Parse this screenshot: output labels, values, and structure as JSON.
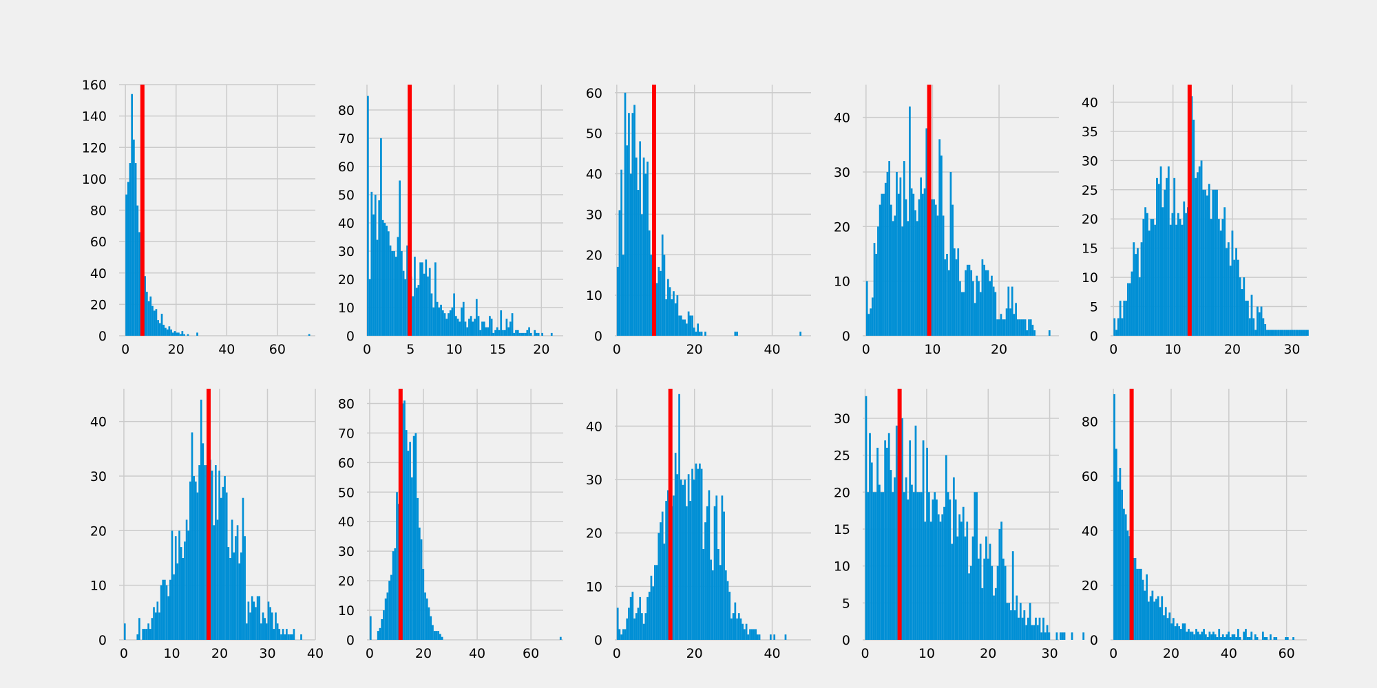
{
  "colors": {
    "figure_bg": "#f0f0f0",
    "axes_bg": "#f0f0f0",
    "grid": "#cbcbcb",
    "bar": "#008fd5",
    "marker": "#ff0000"
  },
  "chart_data": [
    {
      "type": "histogram",
      "grid": true,
      "xlim": [
        -2.5,
        75
      ],
      "ylim": [
        0,
        160
      ],
      "xticks": [
        0,
        20,
        40,
        60
      ],
      "yticks": [
        0,
        20,
        40,
        60,
        80,
        100,
        120,
        140,
        160
      ],
      "bin_start": 0,
      "bin_width": 0.737,
      "marker": 6.7,
      "counts": [
        90,
        98,
        110,
        154,
        125,
        110,
        83,
        66,
        53,
        45,
        38,
        28,
        22,
        25,
        19,
        16,
        17,
        10,
        8,
        14,
        7,
        5,
        4,
        6,
        4,
        2,
        3,
        2,
        2,
        1,
        3,
        1,
        0,
        1,
        0,
        0,
        0,
        0,
        2,
        0,
        0,
        0,
        0,
        0,
        0,
        0,
        0,
        0,
        0,
        0,
        0,
        0,
        0,
        0,
        0,
        0,
        0,
        0,
        0,
        0,
        0,
        0,
        0,
        0,
        0,
        0,
        0,
        0,
        0,
        0,
        0,
        0,
        0,
        0,
        0,
        0,
        0,
        0,
        0,
        0,
        0,
        0,
        0,
        0,
        0,
        0,
        0,
        0,
        0,
        0,
        0,
        0,
        0,
        0,
        0,
        0,
        0,
        0,
        1
      ]
    },
    {
      "type": "histogram",
      "grid": true,
      "xlim": [
        0,
        22.5
      ],
      "ylim": [
        0,
        89
      ],
      "xticks": [
        0,
        5,
        10,
        15,
        20
      ],
      "yticks": [
        0,
        10,
        20,
        30,
        40,
        50,
        60,
        70,
        80
      ],
      "bin_start": 0,
      "bin_width": 0.215,
      "marker": 4.9,
      "counts": [
        85,
        20,
        51,
        43,
        50,
        34,
        48,
        70,
        41,
        40,
        39,
        37,
        32,
        30,
        30,
        28,
        35,
        55,
        30,
        23,
        20,
        32,
        26,
        21,
        14,
        28,
        17,
        18,
        26,
        26,
        22,
        27,
        21,
        24,
        15,
        10,
        26,
        12,
        10,
        11,
        9,
        8,
        6,
        8,
        9,
        10,
        15,
        7,
        6,
        5,
        10,
        12,
        5,
        3,
        6,
        7,
        5,
        6,
        13,
        7,
        2,
        5,
        5,
        3,
        3,
        7,
        6,
        1,
        2,
        3,
        2,
        9,
        2,
        2,
        6,
        3,
        5,
        8,
        1,
        2,
        2,
        1,
        1,
        1,
        1,
        2,
        3,
        1,
        0,
        2,
        1,
        1,
        0,
        1,
        0,
        0,
        0,
        0,
        1,
        0,
        0,
        0,
        0,
        0,
        0,
        0,
        0,
        0,
        0,
        0,
        0,
        0,
        0,
        0,
        0,
        0,
        0,
        0,
        0,
        0,
        0,
        0,
        0,
        0,
        0,
        0,
        0,
        0,
        0,
        0,
        0,
        0,
        0,
        0,
        0,
        0,
        0,
        0,
        0,
        0,
        0,
        0,
        0,
        0,
        0,
        0,
        0,
        0,
        0,
        0,
        0,
        0,
        0,
        0,
        0,
        0,
        0,
        0,
        0,
        0,
        0,
        0,
        0,
        0,
        0,
        0,
        0,
        0,
        0,
        0,
        0,
        0,
        0,
        1
      ]
    },
    {
      "type": "histogram",
      "grid": true,
      "xlim": [
        -0.5,
        50
      ],
      "ylim": [
        0,
        62
      ],
      "xticks": [
        0,
        20,
        40
      ],
      "yticks": [
        0,
        10,
        20,
        30,
        40,
        50,
        60
      ],
      "bin_start": 0,
      "bin_width": 0.48,
      "marker": 9.6,
      "counts": [
        17,
        31,
        41,
        20,
        60,
        47,
        55,
        40,
        55,
        57,
        44,
        36,
        48,
        30,
        44,
        40,
        43,
        26,
        20,
        21,
        15,
        13,
        17,
        16,
        25,
        20,
        9,
        14,
        12,
        9,
        11,
        8,
        10,
        5,
        5,
        4,
        4,
        3,
        6,
        5,
        5,
        2,
        1,
        3,
        1,
        1,
        0,
        1,
        0,
        0,
        0,
        0,
        0,
        0,
        0,
        0,
        0,
        0,
        0,
        0,
        0,
        0,
        0,
        1,
        1,
        0,
        0,
        0,
        0,
        0,
        0,
        0,
        0,
        0,
        0,
        0,
        0,
        0,
        0,
        0,
        0,
        0,
        0,
        0,
        0,
        0,
        0,
        0,
        0,
        0,
        0,
        0,
        0,
        0,
        0,
        0,
        0,
        0,
        1
      ]
    },
    {
      "type": "histogram",
      "grid": true,
      "xlim": [
        -0.5,
        29
      ],
      "ylim": [
        0,
        46
      ],
      "xticks": [
        0,
        10,
        20
      ],
      "yticks": [
        0,
        10,
        20,
        30,
        40
      ],
      "bin_start": 0,
      "bin_width": 0.28,
      "marker": 9.5,
      "counts": [
        10,
        4,
        5,
        7,
        17,
        15,
        20,
        24,
        26,
        26,
        28,
        30,
        32,
        24,
        21,
        22,
        30,
        26,
        29,
        20,
        32,
        25,
        21,
        42,
        27,
        26,
        23,
        21,
        25,
        29,
        26,
        27,
        38,
        23,
        23,
        25,
        25,
        24,
        22,
        36,
        33,
        22,
        14,
        15,
        12,
        30,
        24,
        16,
        14,
        16,
        10,
        8,
        8,
        12,
        13,
        13,
        12,
        10,
        6,
        11,
        10,
        8,
        14,
        13,
        12,
        12,
        10,
        11,
        9,
        8,
        3,
        3,
        4,
        3,
        3,
        5,
        9,
        5,
        9,
        4,
        6,
        3,
        3,
        3,
        3,
        3,
        1,
        3,
        3,
        2,
        1,
        0,
        0,
        0,
        0,
        0,
        0,
        0,
        1,
        0,
        0,
        0,
        0,
        0,
        0,
        0,
        0,
        0,
        0,
        0,
        0,
        0,
        0,
        0,
        0,
        0,
        0,
        0,
        0,
        0,
        0,
        0,
        0,
        0,
        0,
        0,
        0,
        0,
        0,
        0,
        0,
        0,
        0,
        0,
        0,
        0,
        0,
        0,
        0,
        0,
        0,
        0,
        0,
        0,
        0,
        0,
        0,
        0,
        0,
        0,
        0,
        0,
        0,
        0,
        0,
        0,
        0,
        0,
        1
      ]
    },
    {
      "type": "histogram",
      "grid": true,
      "xlim": [
        -0.5,
        32.5
      ],
      "ylim": [
        0,
        43
      ],
      "xticks": [
        0,
        10,
        20,
        30
      ],
      "yticks": [
        0,
        5,
        10,
        15,
        20,
        25,
        30,
        35,
        40
      ],
      "bin_start": 0,
      "bin_width": 0.325,
      "marker": 12.8,
      "counts": [
        3,
        1,
        3,
        6,
        3,
        6,
        6,
        9,
        9,
        11,
        16,
        14,
        15,
        10,
        16,
        20,
        22,
        21,
        18,
        20,
        20,
        19,
        27,
        26,
        29,
        22,
        25,
        27,
        29,
        19,
        21,
        27,
        19,
        21,
        20,
        19,
        23,
        21,
        22,
        22,
        41,
        37,
        27,
        28,
        29,
        30,
        25,
        25,
        24,
        26,
        20,
        25,
        25,
        25,
        20,
        18,
        20,
        22,
        15,
        16,
        12,
        18,
        13,
        15,
        13,
        10,
        8,
        10,
        6,
        6,
        3,
        7,
        3,
        1,
        5,
        4,
        5,
        3,
        2,
        1,
        1,
        1,
        1,
        1,
        1,
        1,
        1,
        1,
        1,
        1,
        1,
        1,
        1,
        1,
        1,
        1,
        1,
        1,
        1,
        1,
        1
      ]
    },
    {
      "type": "histogram",
      "grid": true,
      "xlim": [
        -1,
        40
      ],
      "ylim": [
        0,
        46
      ],
      "xticks": [
        0,
        10,
        20,
        30,
        40
      ],
      "yticks": [
        0,
        10,
        20,
        30,
        40
      ],
      "bin_start": 0,
      "bin_width": 0.38,
      "marker": 17.7,
      "counts": [
        3,
        0,
        0,
        0,
        0,
        0,
        0,
        1,
        4,
        0,
        2,
        2,
        2,
        3,
        2,
        4,
        6,
        5,
        7,
        5,
        10,
        11,
        11,
        10,
        8,
        11,
        20,
        12,
        19,
        14,
        20,
        17,
        15,
        18,
        22,
        20,
        29,
        38,
        30,
        29,
        27,
        32,
        44,
        36,
        32,
        32,
        21,
        33,
        31,
        21,
        32,
        22,
        31,
        26,
        28,
        30,
        27,
        17,
        15,
        22,
        16,
        19,
        21,
        14,
        16,
        26,
        19,
        3,
        7,
        5,
        8,
        7,
        6,
        8,
        8,
        3,
        5,
        4,
        3,
        7,
        6,
        5,
        2,
        5,
        3,
        2,
        1,
        2,
        1,
        2,
        1,
        1,
        1,
        2,
        0,
        0,
        0,
        1
      ]
    },
    {
      "type": "histogram",
      "grid": true,
      "xlim": [
        -1,
        72
      ],
      "ylim": [
        0,
        85
      ],
      "xticks": [
        0,
        20,
        40,
        60
      ],
      "yticks": [
        0,
        10,
        20,
        30,
        40,
        50,
        60,
        70,
        80
      ],
      "bin_start": 0,
      "bin_width": 0.7,
      "marker": 11.5,
      "counts": [
        8,
        0,
        0,
        0,
        3,
        4,
        7,
        10,
        14,
        16,
        20,
        22,
        30,
        31,
        50,
        46,
        74,
        80,
        81,
        71,
        64,
        67,
        55,
        69,
        70,
        48,
        38,
        34,
        24,
        16,
        14,
        11,
        8,
        5,
        3,
        3,
        3,
        2,
        1,
        0,
        0,
        0,
        0,
        0,
        0,
        0,
        0,
        0,
        0,
        0,
        0,
        0,
        0,
        0,
        0,
        0,
        0,
        0,
        0,
        0,
        0,
        0,
        0,
        0,
        0,
        0,
        0,
        0,
        0,
        0,
        0,
        0,
        0,
        0,
        0,
        0,
        0,
        0,
        0,
        0,
        0,
        0,
        0,
        0,
        0,
        0,
        0,
        0,
        0,
        0,
        0,
        0,
        0,
        0,
        0,
        0,
        0,
        0,
        0,
        0,
        0,
        1
      ]
    },
    {
      "type": "histogram",
      "grid": true,
      "xlim": [
        -0.5,
        50
      ],
      "ylim": [
        0,
        47
      ],
      "xticks": [
        0,
        20,
        40
      ],
      "yticks": [
        0,
        10,
        20,
        30,
        40
      ],
      "bin_start": 0,
      "bin_width": 0.48,
      "marker": 13.8,
      "counts": [
        6,
        2,
        1,
        2,
        2,
        4,
        6,
        8,
        9,
        4,
        5,
        6,
        8,
        5,
        3,
        5,
        8,
        9,
        12,
        10,
        14,
        14,
        20,
        22,
        24,
        18,
        26,
        28,
        30,
        25,
        27,
        35,
        31,
        46,
        30,
        29,
        30,
        25,
        31,
        26,
        32,
        30,
        33,
        32,
        33,
        32,
        17,
        22,
        25,
        28,
        15,
        13,
        25,
        27,
        17,
        14,
        27,
        24,
        13,
        11,
        9,
        4,
        5,
        7,
        4,
        5,
        4,
        3,
        2,
        3,
        1,
        2,
        2,
        2,
        2,
        1,
        1,
        0,
        0,
        0,
        0,
        0,
        1,
        0,
        1,
        0,
        0,
        0,
        0,
        0,
        1
      ]
    },
    {
      "type": "histogram",
      "grid": true,
      "xlim": [
        -0.4,
        31.5
      ],
      "ylim": [
        0,
        34
      ],
      "xticks": [
        0,
        10,
        20,
        30
      ],
      "yticks": [
        0,
        5,
        10,
        15,
        20,
        25,
        30
      ],
      "bin_start": 0,
      "bin_width": 0.31,
      "marker": 5.6,
      "counts": [
        33,
        20,
        28,
        24,
        20,
        20,
        26,
        21,
        20,
        20,
        27,
        26,
        28,
        23,
        20,
        22,
        29,
        25,
        17,
        30,
        20,
        22,
        19,
        27,
        21,
        20,
        29,
        20,
        20,
        20,
        27,
        16,
        26,
        20,
        16,
        19,
        20,
        19,
        17,
        16,
        17,
        18,
        25,
        20,
        19,
        13,
        22,
        19,
        14,
        17,
        16,
        18,
        14,
        16,
        9,
        10,
        14,
        20,
        20,
        11,
        13,
        7,
        11,
        14,
        11,
        13,
        10,
        6,
        7,
        10,
        15,
        16,
        11,
        10,
        5,
        5,
        4,
        12,
        4,
        6,
        3,
        5,
        3,
        4,
        2,
        3,
        5,
        2,
        2,
        3,
        2,
        3,
        1,
        3,
        1,
        2,
        1,
        0,
        0,
        0,
        1,
        0,
        1,
        1,
        1,
        0,
        0,
        0,
        1,
        0,
        0,
        0,
        0,
        0,
        1,
        0,
        0,
        0,
        0,
        0,
        0,
        0,
        0,
        0,
        0,
        0,
        0,
        0,
        0,
        0,
        0,
        0,
        0,
        0,
        0,
        0,
        0,
        0,
        0,
        0,
        0,
        0,
        0,
        0,
        0,
        0,
        0,
        0,
        0,
        0,
        0,
        1
      ]
    },
    {
      "type": "histogram",
      "grid": true,
      "xlim": [
        -1,
        67
      ],
      "ylim": [
        0,
        92
      ],
      "xticks": [
        0,
        20,
        40,
        60
      ],
      "yticks": [
        0,
        20,
        40,
        60,
        80
      ],
      "bin_start": 0,
      "bin_width": 0.66,
      "marker": 6.3,
      "counts": [
        90,
        70,
        58,
        63,
        55,
        48,
        46,
        40,
        38,
        32,
        30,
        30,
        26,
        26,
        26,
        22,
        18,
        24,
        14,
        16,
        18,
        14,
        15,
        16,
        12,
        16,
        9,
        12,
        8,
        10,
        6,
        8,
        5,
        6,
        5,
        4,
        6,
        6,
        3,
        4,
        3,
        3,
        2,
        4,
        3,
        2,
        3,
        4,
        2,
        1,
        3,
        2,
        3,
        2,
        1,
        4,
        1,
        2,
        1,
        2,
        3,
        1,
        2,
        2,
        1,
        4,
        1,
        0,
        3,
        4,
        1,
        1,
        3,
        0,
        2,
        1,
        0,
        0,
        3,
        1,
        1,
        0,
        2,
        0,
        1,
        1,
        0,
        0,
        0,
        0,
        1,
        1,
        0,
        0,
        1
      ]
    }
  ]
}
